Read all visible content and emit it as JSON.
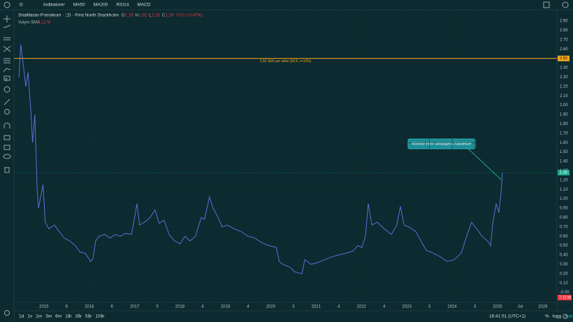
{
  "toolbar": {
    "interval": "D",
    "items": [
      "Indikatorer",
      "MA50",
      "MA200",
      "RSI14",
      "MACD"
    ]
  },
  "legend": {
    "ohlc": [
      {
        "key": "O",
        "value": 1.29
      },
      {
        "key": "H",
        "value": 1.32
      },
      {
        "key": "L",
        "value": 1.26
      },
      {
        "key": "C",
        "value": 1.28
      }
    ],
    "change": "-0.01 (-0.47%)",
    "volume_label": "Volym SMA",
    "volume_value": "7.12 M"
  },
  "chart_data": {
    "type": "line",
    "title": "ShaMaran Petroleum · 1D · First North Stockholm",
    "color": "#5a6fd8",
    "grid": true,
    "x": [
      2014.45,
      2014.49,
      2014.54,
      2014.6,
      2014.65,
      2014.71,
      2014.75,
      2014.8,
      2014.85,
      2014.88,
      2014.92,
      2014.98,
      2015.03,
      2015.11,
      2015.23,
      2015.34,
      2015.45,
      2015.57,
      2015.69,
      2015.8,
      2015.91,
      2016.03,
      2016.08,
      2016.14,
      2016.22,
      2016.34,
      2016.46,
      2016.57,
      2016.68,
      2016.8,
      2016.93,
      2017.0,
      2017.05,
      2017.11,
      2017.22,
      2017.34,
      2017.45,
      2017.54,
      2017.65,
      2017.76,
      2017.88,
      2018.0,
      2018.11,
      2018.22,
      2018.34,
      2018.47,
      2018.54,
      2018.65,
      2018.73,
      2018.84,
      2018.93,
      2019.04,
      2019.19,
      2019.35,
      2019.5,
      2019.65,
      2019.81,
      2019.96,
      2020.12,
      2020.19,
      2020.27,
      2020.42,
      2020.53,
      2020.69,
      2020.75,
      2020.89,
      2021.04,
      2021.19,
      2021.35,
      2021.5,
      2021.66,
      2021.81,
      2021.92,
      2022.01,
      2022.09,
      2022.15,
      2022.23,
      2022.35,
      2022.5,
      2022.66,
      2022.78,
      2022.86,
      2022.94,
      2023.04,
      2023.2,
      2023.31,
      2023.43,
      2023.58,
      2023.74,
      2023.89,
      2024.05,
      2024.2,
      2024.32,
      2024.43,
      2024.54,
      2024.66,
      2024.78,
      2024.85,
      2024.89,
      2024.97,
      2025.03,
      2025.08,
      2025.11
    ],
    "values": [
      2.3,
      2.65,
      2.45,
      2.2,
      2.35,
      1.95,
      1.6,
      1.9,
      1.1,
      0.9,
      1.0,
      1.15,
      0.75,
      0.68,
      0.72,
      0.65,
      0.58,
      0.55,
      0.5,
      0.43,
      0.42,
      0.33,
      0.36,
      0.55,
      0.6,
      0.62,
      0.58,
      0.62,
      0.6,
      0.63,
      0.62,
      0.8,
      0.95,
      0.72,
      0.75,
      0.8,
      0.88,
      0.74,
      0.77,
      0.62,
      0.55,
      0.52,
      0.6,
      0.55,
      0.6,
      0.8,
      0.78,
      1.02,
      0.9,
      0.8,
      0.7,
      0.72,
      0.68,
      0.65,
      0.6,
      0.58,
      0.53,
      0.5,
      0.48,
      0.33,
      0.3,
      0.27,
      0.22,
      0.2,
      0.35,
      0.3,
      0.32,
      0.35,
      0.38,
      0.4,
      0.42,
      0.44,
      0.5,
      0.48,
      0.6,
      0.95,
      0.72,
      0.75,
      0.68,
      0.62,
      0.72,
      0.92,
      0.72,
      0.7,
      0.65,
      0.55,
      0.45,
      0.42,
      0.38,
      0.33,
      0.35,
      0.42,
      0.6,
      0.75,
      0.68,
      0.6,
      0.55,
      0.5,
      0.72,
      0.95,
      0.85,
      1.08,
      1.28
    ],
    "xlim": [
      2014.34,
      2026.31
    ],
    "xticks": [
      2015,
      {
        "value": 2015.5,
        "label": "6"
      },
      2016,
      {
        "value": 2016.5,
        "label": "6"
      },
      2017,
      {
        "value": 2017.5,
        "label": "5"
      },
      2018,
      {
        "value": 2018.5,
        "label": "4"
      },
      2019,
      {
        "value": 2019.5,
        "label": "4"
      },
      2020,
      {
        "value": 2020.5,
        "label": "3"
      },
      2021,
      {
        "value": 2021.5,
        "label": "4"
      },
      2022,
      {
        "value": 2022.5,
        "label": "4"
      },
      2023,
      {
        "value": 2023.5,
        "label": "3"
      },
      2024,
      {
        "value": 2024.5,
        "label": "3"
      },
      2025,
      {
        "value": 2025.5,
        "label": "Jul"
      },
      2026
    ],
    "ylim": [
      -0.1,
      3.02
    ],
    "yticks": [
      {
        "value": 0,
        "label": "-0.00"
      },
      {
        "value": 0.1,
        "label": "0.10"
      },
      {
        "value": 0.2,
        "label": "0.20"
      },
      {
        "value": 0.3,
        "label": "0.30"
      },
      {
        "value": 0.4,
        "label": "0.40"
      },
      {
        "value": 0.5,
        "label": "0.50"
      },
      {
        "value": 0.6,
        "label": "0.60"
      },
      {
        "value": 0.7,
        "label": "0.70"
      },
      {
        "value": 0.8,
        "label": "0.80"
      },
      {
        "value": 0.9,
        "label": "0.90"
      },
      {
        "value": 1.0,
        "label": "1.00"
      },
      {
        "value": 1.1,
        "label": "1.10"
      },
      {
        "value": 1.2,
        "label": "1.20"
      },
      {
        "value": 1.3,
        "label": "1.30"
      },
      {
        "value": 1.4,
        "label": "1.40"
      },
      {
        "value": 1.5,
        "label": "1.50"
      },
      {
        "value": 1.6,
        "label": "1.60"
      },
      {
        "value": 1.7,
        "label": "1.70"
      },
      {
        "value": 1.8,
        "label": "1.80"
      },
      {
        "value": 1.9,
        "label": "1.90"
      },
      {
        "value": 2.0,
        "label": "2.00"
      },
      {
        "value": 2.1,
        "label": "2.10"
      },
      {
        "value": 2.2,
        "label": "2.20"
      },
      {
        "value": 2.3,
        "label": "2.30"
      },
      {
        "value": 2.4,
        "label": "2.40"
      },
      {
        "value": 2.5,
        "label": "2.50"
      },
      {
        "value": 2.6,
        "label": "2.60"
      },
      {
        "value": 2.7,
        "label": "2.70"
      },
      {
        "value": 2.8,
        "label": "2.80"
      },
      {
        "value": 2.9,
        "label": "2.90"
      }
    ],
    "hline": {
      "value": 2.5,
      "label": "2,50 SEK per aktie (DCF, r=10%)",
      "tag": "2.50",
      "color": "#f5a623"
    },
    "last_price": {
      "value": 1.28,
      "label": "1.28",
      "color": "#22ab94"
    },
    "volume_tag": "7.12 M",
    "annotation": "Rörelse efter söndagens händelser"
  },
  "bottom": {
    "ranges": [
      "1d",
      "1v",
      "1m",
      "3m",
      "6m",
      "1år",
      "3år",
      "5år",
      "10år"
    ],
    "clock": "16:41:51 (UTC+1)",
    "options": [
      "%",
      "logg",
      "auto"
    ]
  }
}
